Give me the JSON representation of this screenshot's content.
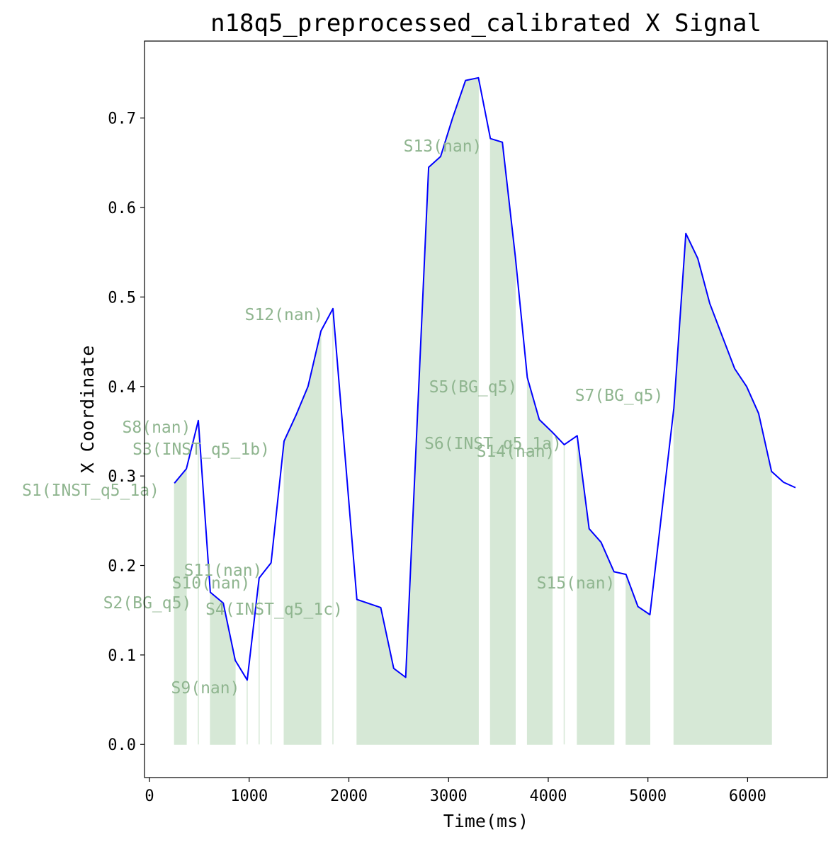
{
  "chart_data": {
    "type": "line",
    "title": "n18q5_preprocessed_calibrated X Signal",
    "xlabel": "Time(ms)",
    "ylabel": "X Coordinate",
    "xlim": [
      -50,
      6800
    ],
    "ylim": [
      -0.037,
      0.786
    ],
    "x_ticks": [
      0,
      1000,
      2000,
      3000,
      4000,
      5000,
      6000
    ],
    "y_ticks": [
      0.0,
      0.1,
      0.2,
      0.3,
      0.4,
      0.5,
      0.6,
      0.7
    ],
    "y_tick_labels": [
      "0.0",
      "0.1",
      "0.2",
      "0.3",
      "0.4",
      "0.5",
      "0.6",
      "0.7"
    ],
    "grid": false,
    "series": [
      {
        "color": "#0000ff",
        "x": [
          250,
          370,
          490,
          610,
          740,
          860,
          980,
          1100,
          1220,
          1350,
          1470,
          1590,
          1720,
          1840,
          2080,
          2320,
          2450,
          2570,
          2800,
          2920,
          3040,
          3170,
          3300,
          3420,
          3540,
          3670,
          3790,
          3910,
          4040,
          4160,
          4290,
          4410,
          4530,
          4660,
          4780,
          4900,
          5020,
          5260,
          5380,
          5500,
          5620,
          5750,
          5870,
          5990,
          6110,
          6240,
          6360,
          6480
        ],
        "y": [
          0.292,
          0.308,
          0.362,
          0.17,
          0.158,
          0.094,
          0.072,
          0.186,
          0.203,
          0.339,
          0.368,
          0.4,
          0.462,
          0.487,
          0.162,
          0.153,
          0.085,
          0.075,
          0.645,
          0.657,
          0.7,
          0.742,
          0.745,
          0.677,
          0.673,
          0.545,
          0.41,
          0.363,
          0.349,
          0.335,
          0.345,
          0.241,
          0.226,
          0.193,
          0.19,
          0.154,
          0.145,
          0.376,
          0.571,
          0.543,
          0.493,
          0.455,
          0.42,
          0.4,
          0.37,
          0.305,
          0.293,
          0.287
        ]
      }
    ],
    "shade_color": "#d6e8d6",
    "segments": [
      {
        "label": "S1(INST_q5_1a)",
        "start": 250,
        "end": 370
      },
      {
        "label": "S8(nan)",
        "start": 490,
        "end": 490
      },
      {
        "label": "S3(INST_q5_1b)",
        "start": 610,
        "end": 860
      },
      {
        "label": "S2(BG_q5)",
        "start": 980,
        "end": 980
      },
      {
        "label": "S10(nan)",
        "start": 1100,
        "end": 1100
      },
      {
        "label": "S11(nan)",
        "start": 1220,
        "end": 1220
      },
      {
        "label": "S4(INST_q5_1c)",
        "start": 1350,
        "end": 1720
      },
      {
        "label": "S9(nan)",
        "start": 1840,
        "end": 1840
      },
      {
        "label": "S12(nan)",
        "start": 2080,
        "end": 3300
      },
      {
        "label": "S13(nan)",
        "start": 3420,
        "end": 3670
      },
      {
        "label": "S5(BG_q5)",
        "start": 3790,
        "end": 4040
      },
      {
        "label": "S6(INST_q5_1a)",
        "start": 4160,
        "end": 4160
      },
      {
        "label": "S14(nan)",
        "start": 4290,
        "end": 4660
      },
      {
        "label": "S15(nan)",
        "start": 4780,
        "end": 5020
      },
      {
        "label": "S7(BG_q5)",
        "start": 5260,
        "end": 6240
      }
    ]
  }
}
